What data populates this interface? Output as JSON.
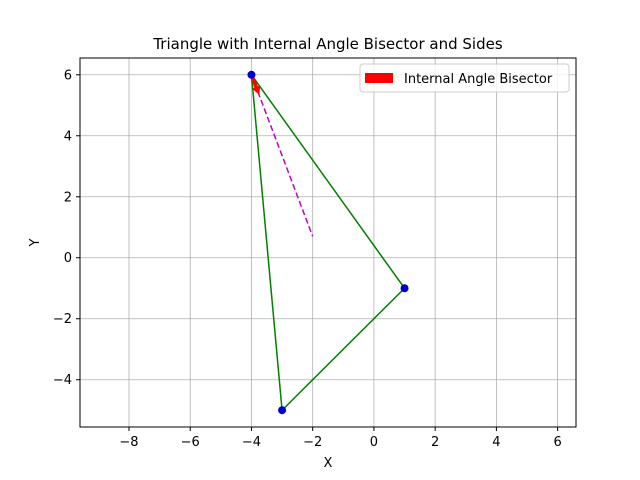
{
  "chart_data": {
    "type": "line",
    "title": "Triangle with Internal Angle Bisector and Sides",
    "xlabel": "X",
    "ylabel": "Y",
    "xlim": [
      -9.6,
      6.6
    ],
    "ylim": [
      -5.55,
      6.55
    ],
    "xticks": [
      -8,
      -6,
      -4,
      -2,
      0,
      2,
      4,
      6
    ],
    "yticks": [
      -4,
      -2,
      0,
      2,
      4,
      6
    ],
    "xtick_labels": [
      "−8",
      "−6",
      "−4",
      "−2",
      "0",
      "2",
      "4",
      "6"
    ],
    "ytick_labels": [
      "−4",
      "−2",
      "0",
      "2",
      "4",
      "6"
    ],
    "grid": true,
    "legend_position": "top-right",
    "vertices": [
      {
        "x": -4,
        "y": 6
      },
      {
        "x": 1,
        "y": -1
      },
      {
        "x": -3,
        "y": -5
      }
    ],
    "sides": {
      "color": "#008000",
      "segments": [
        [
          {
            "x": -4,
            "y": 6
          },
          {
            "x": 1,
            "y": -1
          }
        ],
        [
          {
            "x": 1,
            "y": -1
          },
          {
            "x": -3,
            "y": -5
          }
        ],
        [
          {
            "x": -3,
            "y": -5
          },
          {
            "x": -4,
            "y": 6
          }
        ]
      ]
    },
    "bisector": {
      "color": "#bf00bf",
      "start": {
        "x": -4,
        "y": 6
      },
      "end": {
        "x": -2,
        "y": 0.7
      }
    },
    "arrow": {
      "color": "#ff0000",
      "start": {
        "x": -4,
        "y": 6
      },
      "end": {
        "x": -3.75,
        "y": 5.35
      }
    },
    "vertex_color": "#0000cc",
    "legend": [
      {
        "label": "Internal Angle Bisector",
        "color": "#ff0000"
      }
    ]
  }
}
